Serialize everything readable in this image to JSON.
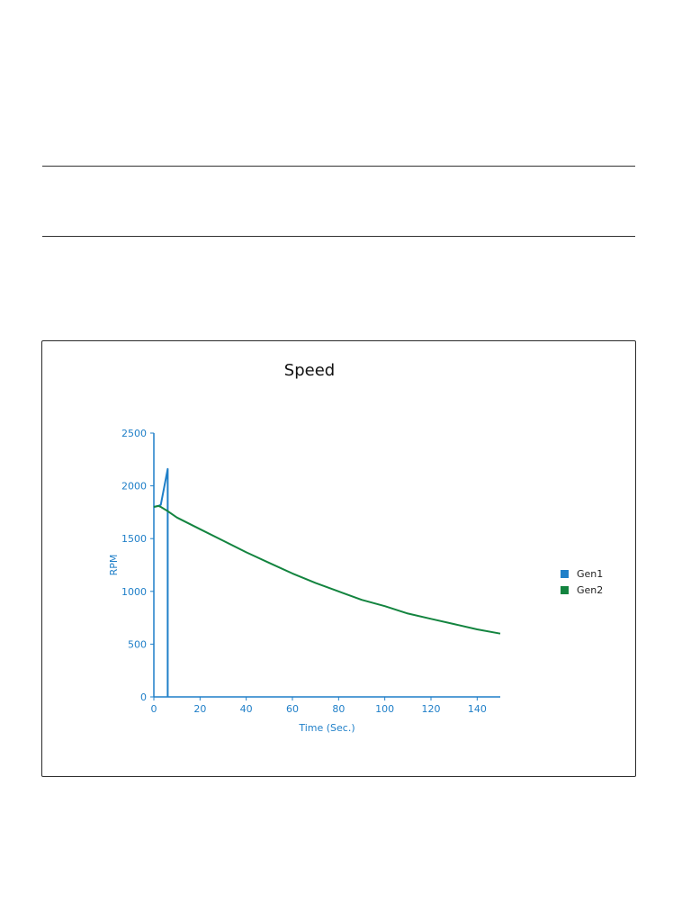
{
  "chart_data": {
    "type": "line",
    "title": "Speed",
    "xlabel": "Time (Sec.)",
    "ylabel": "RPM",
    "xlim": [
      0,
      150
    ],
    "ylim": [
      0,
      2500
    ],
    "xticks": [
      0,
      20,
      40,
      60,
      80,
      100,
      120,
      140
    ],
    "yticks": [
      0,
      500,
      1000,
      1500,
      2000,
      2500
    ],
    "grid": false,
    "legend_position": "right",
    "axis_color": "#1f7fc8",
    "series": [
      {
        "name": "Gen1",
        "color": "#1f7fc8",
        "x": [
          0,
          2,
          3,
          6,
          6,
          6
        ],
        "y": [
          1800,
          1810,
          1820,
          2160,
          1800,
          0
        ]
      },
      {
        "name": "Gen2",
        "color": "#13843f",
        "x": [
          0,
          2,
          3,
          6,
          10,
          20,
          30,
          40,
          50,
          60,
          70,
          80,
          90,
          100,
          110,
          120,
          130,
          140,
          150
        ],
        "y": [
          1800,
          1810,
          1800,
          1760,
          1700,
          1590,
          1480,
          1370,
          1270,
          1170,
          1080,
          1000,
          920,
          860,
          790,
          740,
          690,
          640,
          600
        ]
      }
    ]
  }
}
